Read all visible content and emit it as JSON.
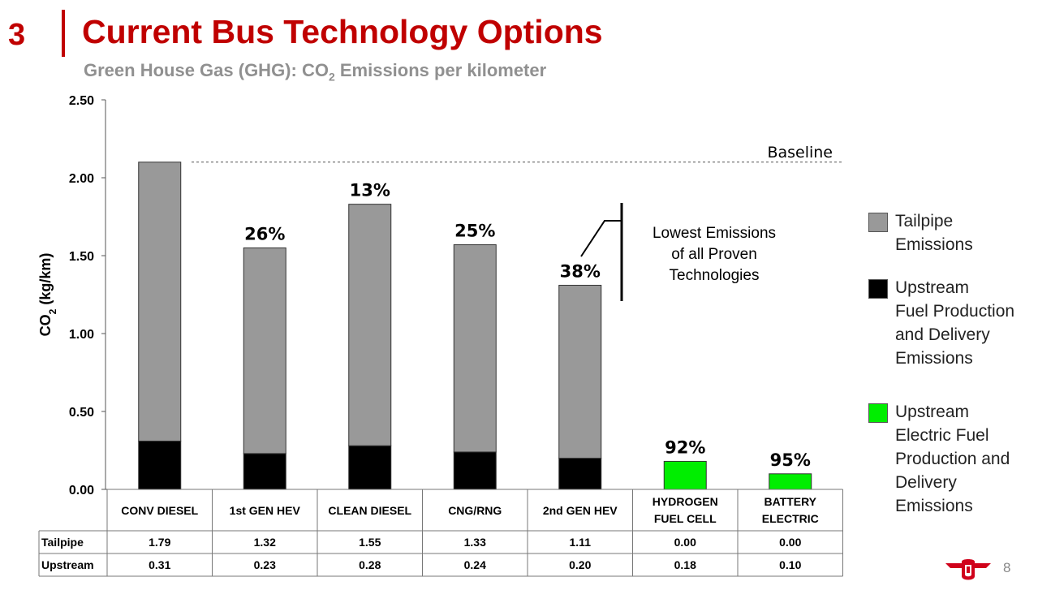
{
  "header": {
    "slide_number": "3",
    "title": "Current Bus Technology Options",
    "subtitle_pre": "Green House Gas (GHG): CO",
    "subtitle_sub": "2",
    "subtitle_post": " Emissions per kilometer"
  },
  "chart_data": {
    "type": "bar",
    "stacked": true,
    "categories": [
      "CONV DIESEL",
      "1st GEN HEV",
      "CLEAN DIESEL",
      "CNG/RNG",
      "2nd GEN HEV",
      "HYDROGEN\nFUEL CELL",
      "BATTERY\nELECTRIC"
    ],
    "series": [
      {
        "name": "Upstream",
        "values": [
          0.31,
          0.23,
          0.28,
          0.24,
          0.2,
          0.18,
          0.1
        ]
      },
      {
        "name": "Tailpipe",
        "values": [
          1.79,
          1.32,
          1.55,
          1.33,
          1.11,
          0.0,
          0.0
        ]
      }
    ],
    "reduction_labels": [
      "",
      "26%",
      "13%",
      "25%",
      "38%",
      "92%",
      "95%"
    ],
    "ylabel_pre": "CO",
    "ylabel_sub": "2",
    "ylabel_post": " (kg/km)",
    "ylim": [
      0,
      2.5
    ],
    "yticks": [
      "0.00",
      "0.50",
      "1.00",
      "1.50",
      "2.00",
      "2.50"
    ],
    "baseline": {
      "value": 2.1,
      "label": "Baseline"
    },
    "annotation": [
      "Lowest Emissions",
      "of all Proven",
      "Technologies"
    ],
    "table": {
      "row_labels": [
        "Tailpipe",
        "Upstream"
      ],
      "rows": [
        [
          "1.79",
          "1.32",
          "1.55",
          "1.33",
          "1.11",
          "0.00",
          "0.00"
        ],
        [
          "0.31",
          "0.23",
          "0.28",
          "0.24",
          "0.20",
          "0.18",
          "0.10"
        ]
      ]
    },
    "colors": {
      "tailpipe": "#999999",
      "upstream_fuel": "#000000",
      "upstream_electric": "#00ee00"
    }
  },
  "legend": {
    "tailpipe": "Tailpipe\nEmissions",
    "upstream_fuel": "Upstream\nFuel Production\nand Delivery\nEmissions",
    "upstream_electric": "Upstream\nElectric Fuel\nProduction and\nDelivery\nEmissions"
  },
  "footer": {
    "page_number": "8",
    "logo_icon": "ttc-logo-icon"
  }
}
